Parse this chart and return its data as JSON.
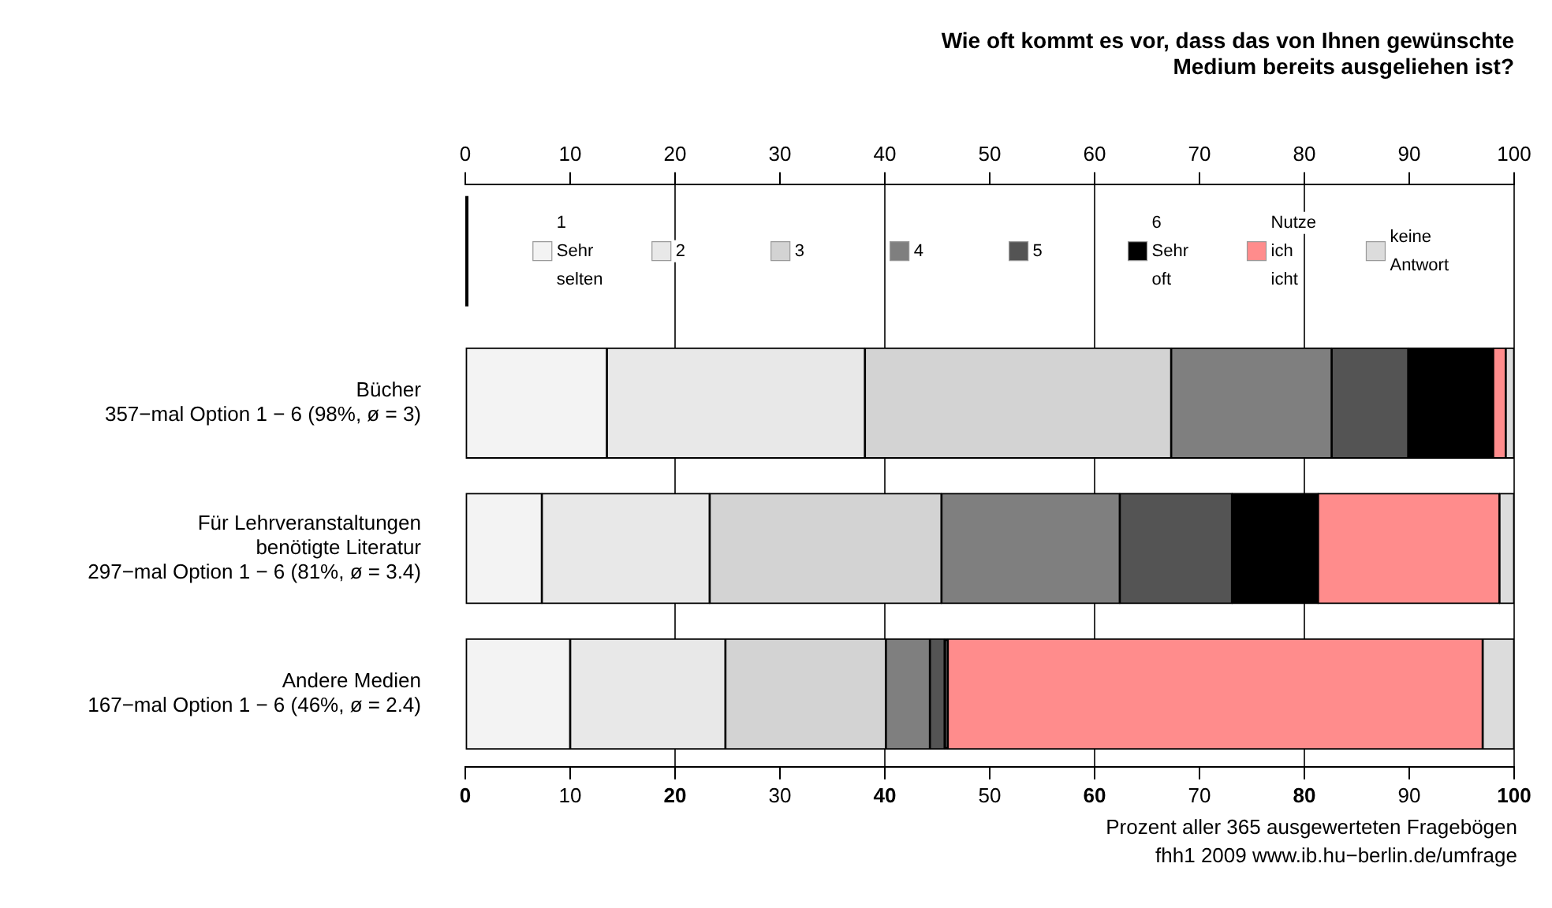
{
  "chart_data": {
    "type": "bar",
    "orientation": "horizontal",
    "stacked": true,
    "title": [
      "Wie oft kommt es vor, dass das von Ihnen gewünschte",
      "Medium bereits ausgeliehen ist?"
    ],
    "categories": [
      "Bücher\n357−mal Option 1 − 6 (98%, ø = 3)",
      "Für Lehrveranstaltungen\nbenötigte Literatur\n297−mal Option 1 − 6 (81%, ø = 3.4)",
      "Andere Medien\n167−mal Option 1 − 6 (46%, ø = 2.4)"
    ],
    "series": [
      {
        "name": "1 Sehr selten",
        "color": "#f3f3f3",
        "values": [
          13.5,
          7.3,
          10.0
        ]
      },
      {
        "name": "2",
        "color": "#e8e8e8",
        "values": [
          24.6,
          16.0,
          14.8
        ]
      },
      {
        "name": "3",
        "color": "#d3d3d3",
        "values": [
          29.2,
          22.1,
          15.3
        ]
      },
      {
        "name": "4",
        "color": "#7f7f7f",
        "values": [
          15.3,
          17.0,
          4.2
        ]
      },
      {
        "name": "5",
        "color": "#545454",
        "values": [
          7.3,
          10.7,
          1.4
        ]
      },
      {
        "name": "6 Sehr oft",
        "color": "#000000",
        "values": [
          8.1,
          8.2,
          0.3
        ]
      },
      {
        "name": "Nutze ich icht",
        "color": "#ff8c8c",
        "values": [
          1.2,
          17.3,
          51.0
        ]
      },
      {
        "name": "keine Antwort",
        "color": "#dcdcdc",
        "values": [
          0.8,
          1.4,
          3.0
        ]
      }
    ],
    "xlim": [
      0,
      100
    ],
    "xticks": [
      0,
      10,
      20,
      30,
      40,
      50,
      60,
      70,
      80,
      90,
      100
    ],
    "x2lim": [
      0,
      100
    ],
    "x2ticks": [
      0,
      10,
      20,
      30,
      40,
      50,
      60,
      70,
      80,
      90,
      100
    ],
    "grid": "x",
    "legend": "top",
    "annotations": [
      "Prozent aller 365 ausgewerteten Fragebögen",
      "fhh1 2009 www.ib.hu−berlin.de/umfrage"
    ]
  }
}
